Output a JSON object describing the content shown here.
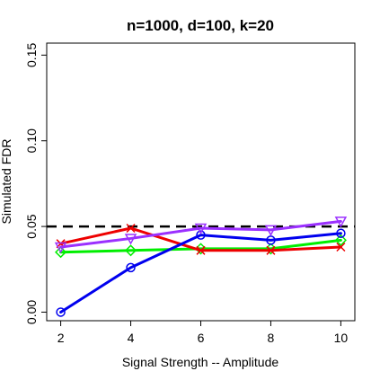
{
  "chart_data": {
    "type": "line",
    "title": "n=1000, d=100, k=20",
    "xlabel": "Signal Strength -- Amplitude",
    "ylabel": "Simulated FDR",
    "x": [
      2,
      4,
      6,
      8,
      10
    ],
    "xlim": [
      1.6,
      10.4
    ],
    "ylim": [
      -0.005,
      0.157
    ],
    "xticks": [
      2,
      4,
      6,
      8,
      10
    ],
    "yticks": [
      "0.00",
      "0.05",
      "0.10",
      "0.15"
    ],
    "reference_line": {
      "y": 0.05,
      "style": "dashed",
      "color": "#000000"
    },
    "series": [
      {
        "color": "#00ee00",
        "marker": "diamond",
        "values": [
          0.035,
          0.036,
          0.037,
          0.037,
          0.042
        ]
      },
      {
        "color": "#ee0000",
        "marker": "x",
        "values": [
          0.04,
          0.049,
          0.036,
          0.036,
          0.038
        ]
      },
      {
        "color": "#0000ee",
        "marker": "circle",
        "values": [
          0.0,
          0.026,
          0.045,
          0.042,
          0.046
        ]
      },
      {
        "color": "#9b30ff",
        "marker": "triangle-down",
        "values": [
          0.038,
          0.043,
          0.049,
          0.048,
          0.053
        ]
      }
    ],
    "grid": false
  }
}
